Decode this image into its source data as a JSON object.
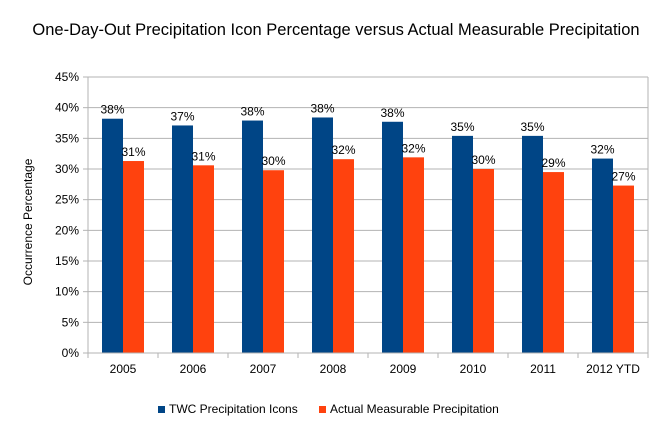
{
  "chart_data": {
    "type": "bar",
    "title": "One-Day-Out Precipitation Icon Percentage versus Actual Measurable Precipitation",
    "xlabel": "",
    "ylabel": "Occurrence Percentage",
    "ylim": [
      0,
      45
    ],
    "yticks": [
      "0%",
      "5%",
      "10%",
      "15%",
      "20%",
      "25%",
      "30%",
      "35%",
      "40%",
      "45%"
    ],
    "grid": true,
    "legend_position": "bottom",
    "categories": [
      "2005",
      "2006",
      "2007",
      "2008",
      "2009",
      "2010",
      "2011",
      "2012 YTD"
    ],
    "series": [
      {
        "name": "TWC Precipitation Icons",
        "color": "#004586",
        "values": [
          38.2,
          37.1,
          37.9,
          38.4,
          37.7,
          35.4,
          35.4,
          31.7
        ],
        "labels": [
          "38%",
          "37%",
          "38%",
          "38%",
          "38%",
          "35%",
          "35%",
          "32%"
        ]
      },
      {
        "name": "Actual Measurable Precipitation",
        "color": "#ff420e",
        "values": [
          31.3,
          30.6,
          29.8,
          31.6,
          31.9,
          30.0,
          29.5,
          27.3
        ],
        "labels": [
          "31%",
          "31%",
          "30%",
          "32%",
          "32%",
          "30%",
          "29%",
          "27%"
        ]
      }
    ]
  }
}
